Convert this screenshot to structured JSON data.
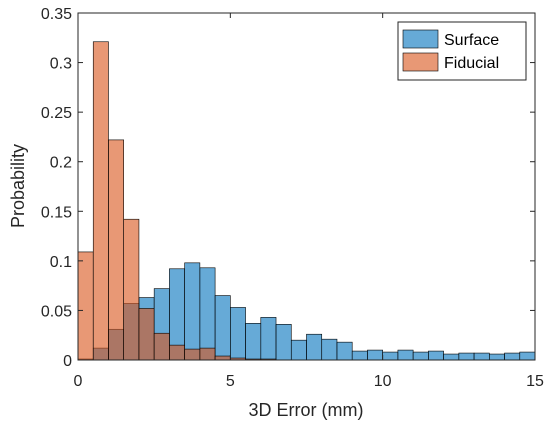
{
  "chart_data": {
    "type": "bar",
    "xlabel": "3D Error (mm)",
    "ylabel": "Probability",
    "xlim": [
      0,
      15
    ],
    "ylim": [
      0,
      0.35
    ],
    "xticks": [
      0,
      5,
      10,
      15
    ],
    "yticks": [
      0,
      0.05,
      0.1,
      0.15,
      0.2,
      0.25,
      0.3,
      0.35
    ],
    "xtick_labels": [
      "0",
      "5",
      "10",
      "15"
    ],
    "ytick_labels": [
      "0",
      "0.05",
      "0.1",
      "0.15",
      "0.2",
      "0.25",
      "0.3",
      "0.35"
    ],
    "bin_width": 0.5,
    "bin_edges_start": 0,
    "legend_position": "top-right",
    "grid": false,
    "series": [
      {
        "name": "Surface",
        "color": "#0072BD",
        "opacity": 0.6,
        "values": [
          0.001,
          0.012,
          0.031,
          0.057,
          0.063,
          0.072,
          0.092,
          0.098,
          0.093,
          0.065,
          0.053,
          0.037,
          0.043,
          0.036,
          0.02,
          0.026,
          0.021,
          0.018,
          0.009,
          0.01,
          0.008,
          0.01,
          0.008,
          0.009,
          0.006,
          0.007,
          0.007,
          0.006,
          0.007,
          0.008
        ]
      },
      {
        "name": "Fiducial",
        "color": "#D95319",
        "opacity": 0.6,
        "values": [
          0.109,
          0.321,
          0.222,
          0.142,
          0.052,
          0.027,
          0.015,
          0.011,
          0.012,
          0.004,
          0.002,
          0.001,
          0.001,
          0.0,
          0.0,
          0.0,
          0.0,
          0.0,
          0.0,
          0.0,
          0.0,
          0.0,
          0.0,
          0.0,
          0.0,
          0.0,
          0.0,
          0.0,
          0.0,
          0.0
        ]
      }
    ]
  }
}
